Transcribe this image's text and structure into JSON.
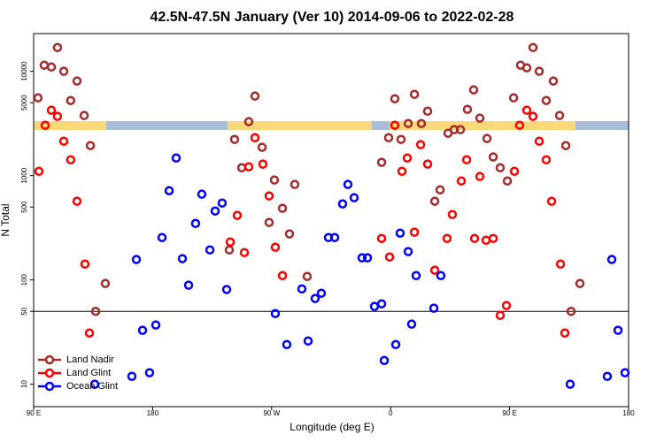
{
  "chart_data": {
    "type": "scatter",
    "title": "42.5N-47.5N January (Ver 10)   2014-09-06 to 2022-02-28",
    "xlabel": "Longitude (deg E)",
    "ylabel": "N Total",
    "xlim": [
      90,
      540
    ],
    "xticks": [
      {
        "value": 90,
        "label": "90 E"
      },
      {
        "value": 180,
        "label": "180"
      },
      {
        "value": 270,
        "label": "90 W"
      },
      {
        "value": 360,
        "label": "0"
      },
      {
        "value": 450,
        "label": "90 E"
      },
      {
        "value": 540,
        "label": "180"
      }
    ],
    "ylim": [
      6.1,
      23000
    ],
    "log_y": true,
    "yticks": [
      10,
      50,
      100,
      500,
      1000,
      5000,
      10000
    ],
    "hline": 50,
    "legend": "bottom-left",
    "series": [
      {
        "name": "Land Nadir",
        "color": "#a52a2a",
        "x": [
          93.3,
          98,
          103.4,
          108,
          112.8,
          118,
          122.8,
          128.2,
          132.9,
          136.9,
          144.2,
          238,
          242,
          247.4,
          252.7,
          257.4,
          262.8,
          268.1,
          272.1,
          278.2,
          283.5,
          287.5,
          296.9,
          353.2,
          358.5,
          363.2,
          367.9,
          373.3,
          378,
          383.3,
          388,
          393.4,
          397.4,
          403.4,
          408.1,
          412.8,
          418.1,
          422.8,
          427.5,
          432.9,
          437.6,
          442.9,
          448.3,
          453,
          458.3,
          463,
          467.7,
          472.4,
          477.7,
          483.1,
          487.8,
          492.5,
          496.5,
          503.2
        ],
        "values": [
          5570,
          11460,
          11000,
          16900,
          10000,
          5250,
          8070,
          3770,
          1940,
          50,
          92.5,
          194,
          2225,
          1190,
          3290,
          5790,
          1870,
          356,
          908,
          486,
          276,
          823,
          108,
          1340,
          2310,
          5460,
          2225,
          3160,
          6020,
          3160,
          4150,
          568,
          731,
          2550,
          2760,
          2760,
          4320,
          6640,
          3560,
          2270,
          1510,
          1190,
          889,
          5570,
          11460,
          10810,
          16900,
          10000,
          5250,
          8070,
          3770,
          1940,
          50,
          92.5
        ]
      },
      {
        "name": "Land Glint",
        "color": "#ff0000",
        "x": [
          94,
          98.7,
          103.4,
          108,
          112.8,
          118,
          122.8,
          128.8,
          132.2,
          238.7,
          244,
          249.4,
          252.7,
          257.4,
          263.4,
          268.1,
          272.8,
          278.2,
          353.2,
          359.2,
          363.2,
          368.6,
          372.6,
          378,
          382.7,
          388,
          393.4,
          402.7,
          406.7,
          413.5,
          417.5,
          423.5,
          427.5,
          432.2,
          437.6,
          442.9,
          447.6,
          453.6,
          457.6,
          463,
          467.7,
          472.4,
          477.7,
          481.8,
          488.5,
          491.8
        ],
        "values": [
          1100,
          3040,
          4240,
          3700,
          2140,
          1420,
          568,
          142,
          31,
          231,
          416,
          183,
          1215,
          2310,
          1290,
          639,
          206,
          110,
          250,
          166,
          3040,
          1100,
          1476,
          287,
          1980,
          1290,
          124,
          250,
          424,
          889,
          1420,
          250,
          981,
          240,
          250,
          45.8,
          56.8,
          1100,
          3040,
          4240,
          3700,
          2140,
          1420,
          568,
          142,
          31
        ]
      },
      {
        "name": "Ocean Glint",
        "color": "#0000ff",
        "x": [
          136.2,
          164.3,
          167.7,
          172.4,
          177.7,
          182.4,
          187.1,
          192.5,
          197.8,
          202.5,
          207.2,
          212.5,
          217.2,
          223.3,
          227.3,
          232.6,
          236,
          272.8,
          281.5,
          292.9,
          297.6,
          302.9,
          307.6,
          313,
          317.7,
          323.7,
          327.7,
          332.4,
          338.4,
          342.5,
          347.8,
          353.2,
          355.2,
          363.9,
          367.2,
          373.3,
          375.9,
          379.3,
          392.7,
          398,
          495.8,
          523.9,
          527.3,
          532,
          537.3
        ],
        "values": [
          10,
          11.9,
          157,
          32.9,
          12.9,
          37,
          255,
          717,
          1476,
          160,
          89,
          348,
          664,
          194,
          458,
          546,
          81,
          47.6,
          24,
          82,
          26,
          66.4,
          74.6,
          255,
          255,
          536,
          823,
          614,
          163,
          163,
          55.7,
          59,
          16.9,
          24,
          281,
          187,
          37.7,
          110,
          53.6,
          110,
          10,
          11.9,
          157,
          32.9,
          12.9
        ]
      }
    ]
  }
}
